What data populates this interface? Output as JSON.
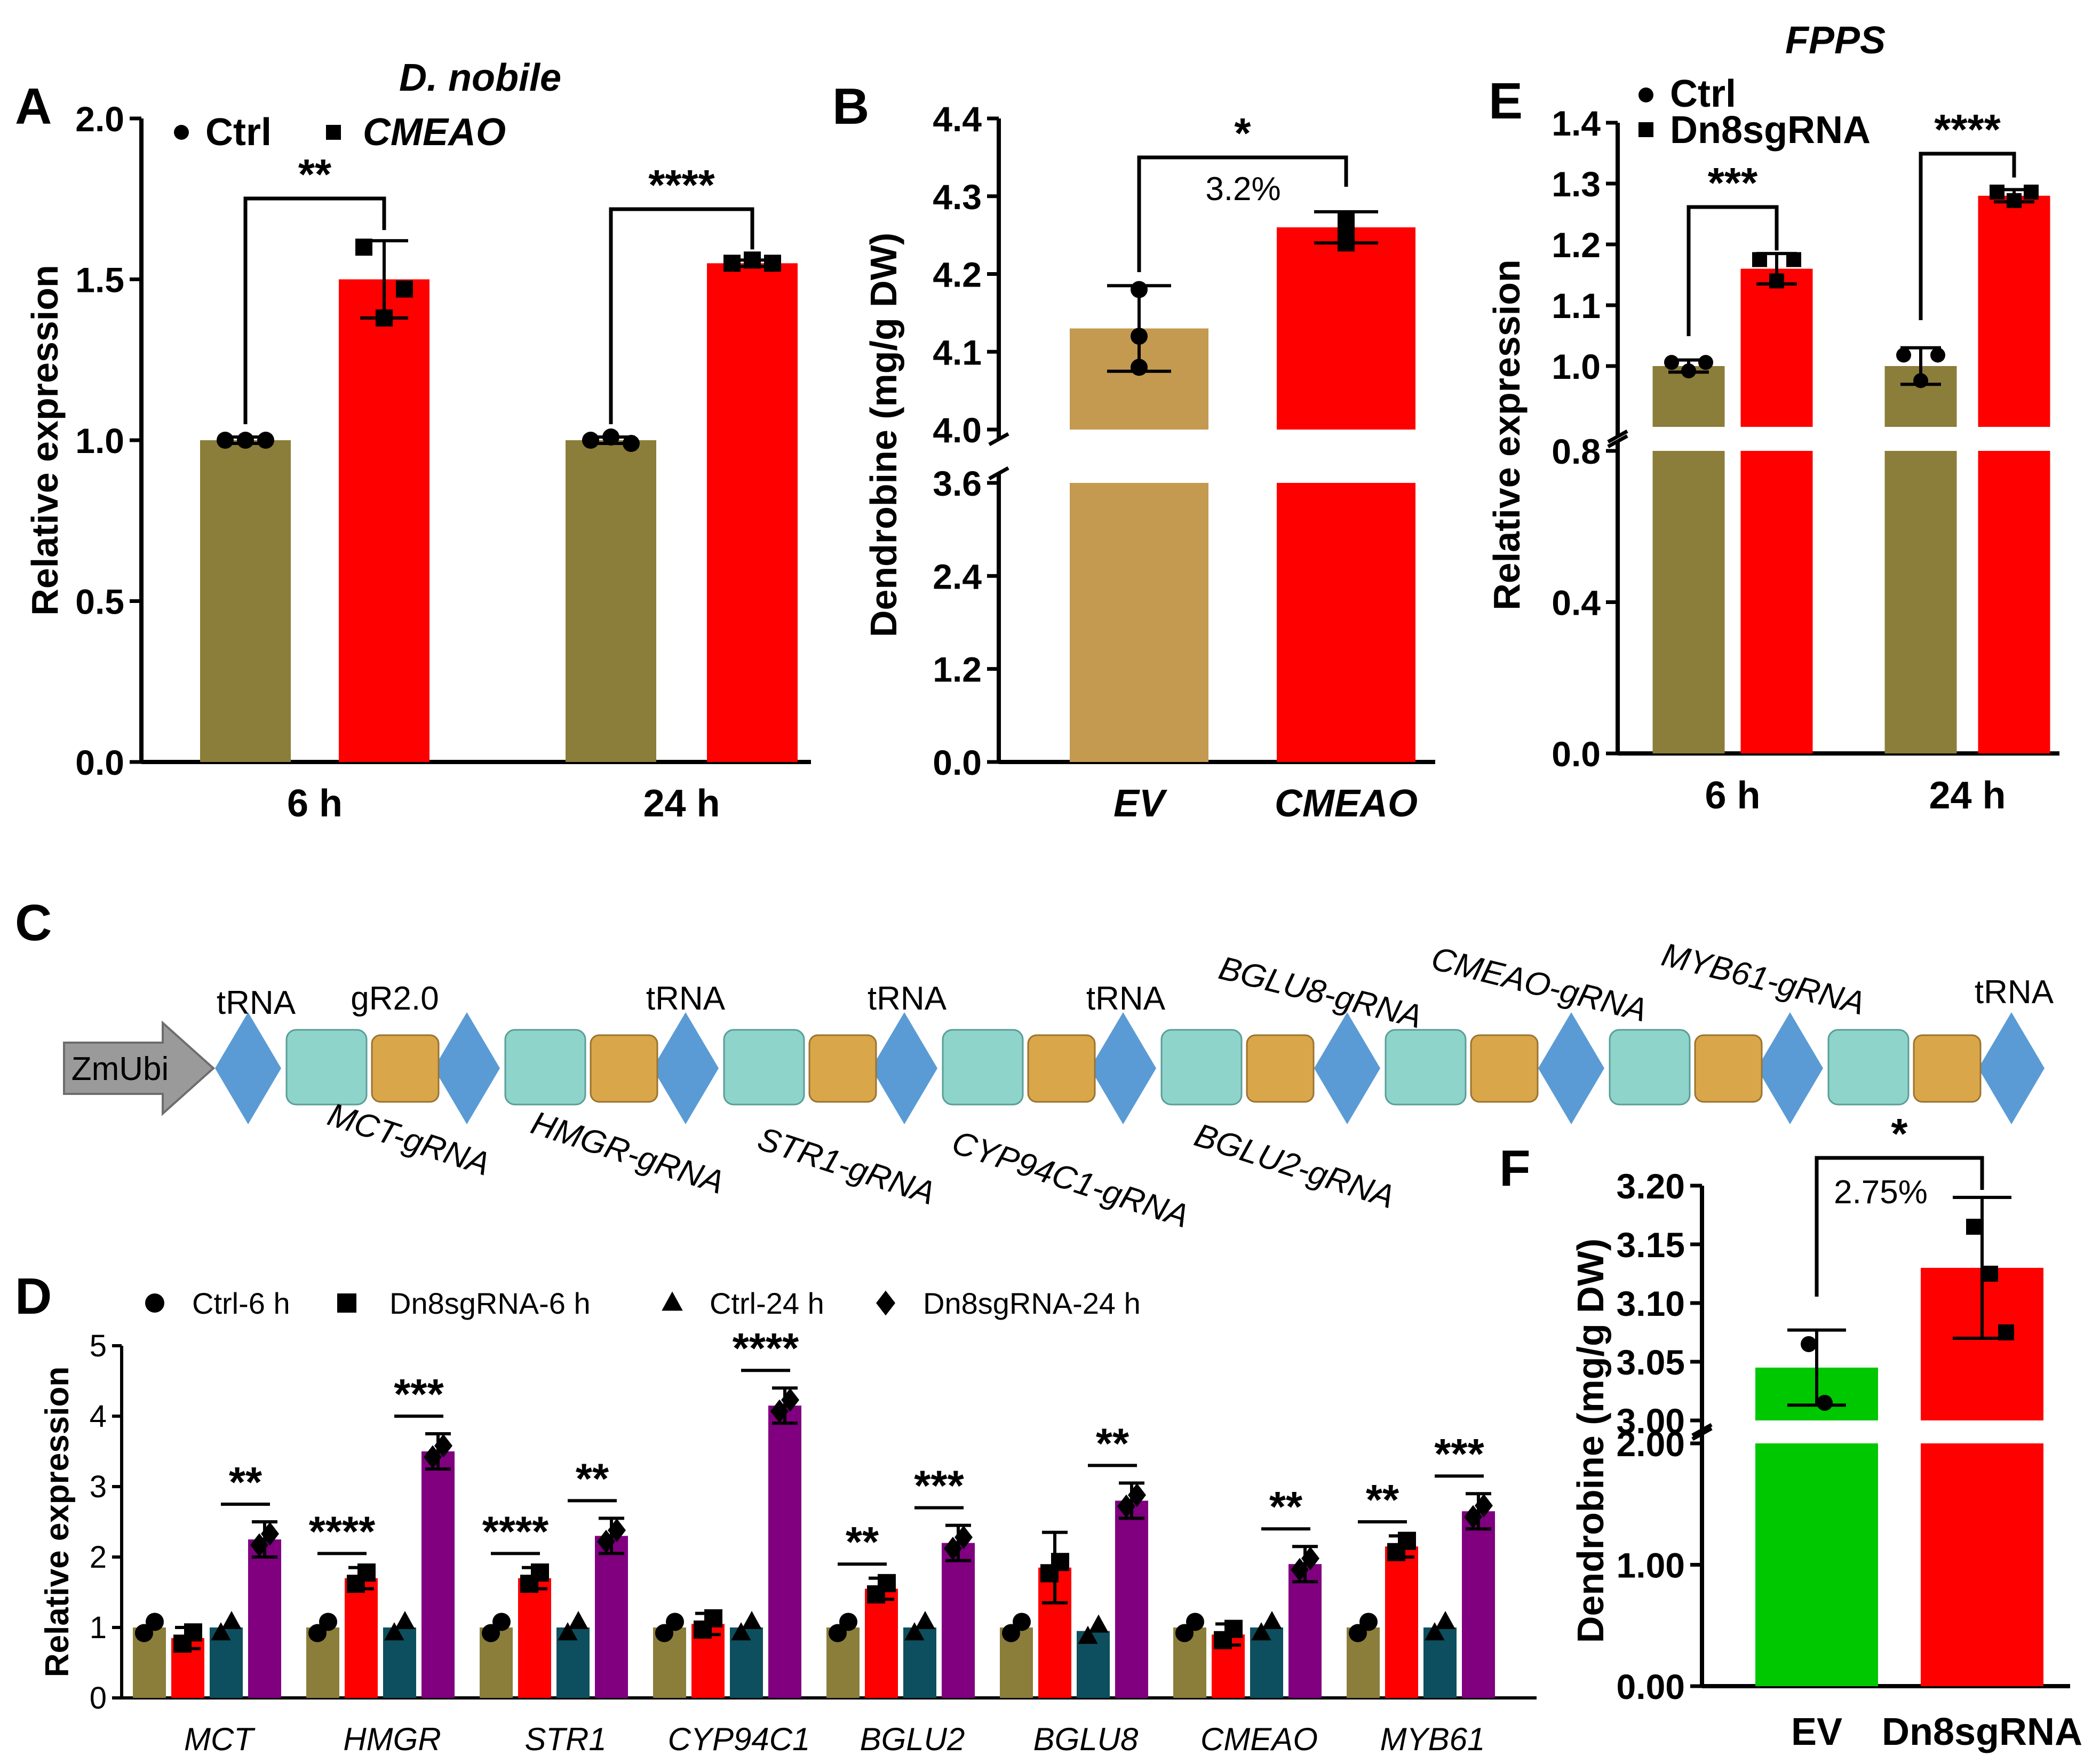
{
  "colors": {
    "ctrl_olive": "#8B7D3A",
    "ev_tan": "#C49A50",
    "treat_red": "#FF0000",
    "dark_teal": "#0D4F5E",
    "purple": "#800080",
    "green": "#00C800",
    "promoter_grey": "#9A9A9A",
    "trna_blue": "#5B9BD5",
    "scaffold_teal": "#8FD4CB",
    "grna_orange": "#D9A64A"
  },
  "panels": {
    "A": "A",
    "B": "B",
    "C": "C",
    "D": "D",
    "E": "E",
    "F": "F"
  },
  "chart_data": [
    {
      "panel": "A",
      "type": "bar",
      "title": "D. nobile",
      "ylabel": "Relative expression",
      "ylim": [
        0,
        2.0
      ],
      "yticks": [
        "0.0",
        "0.5",
        "1.0",
        "1.5",
        "2.0"
      ],
      "categories": [
        "6 h",
        "24 h"
      ],
      "series": [
        {
          "name": "Ctrl",
          "marker": "circle",
          "values": [
            1.0,
            1.0
          ],
          "errors": [
            0.01,
            0.01
          ],
          "points": [
            [
              1.0,
              1.0,
              1.0
            ],
            [
              1.0,
              1.01,
              0.99
            ]
          ]
        },
        {
          "name": "CMEAO",
          "marker": "square",
          "values": [
            1.5,
            1.55
          ],
          "errors": [
            0.12,
            0.01
          ],
          "points": [
            [
              1.6,
              1.38,
              1.47
            ],
            [
              1.55,
              1.56,
              1.55
            ]
          ]
        }
      ],
      "significance": [
        "**",
        "****"
      ]
    },
    {
      "panel": "B",
      "type": "bar",
      "ylabel": "Dendrobine (mg/g DW)",
      "yticks_low": [
        "0.0",
        "1.2",
        "2.4",
        "3.6"
      ],
      "yticks_high": [
        "4.0",
        "4.1",
        "4.2",
        "4.3",
        "4.4"
      ],
      "categories": [
        "EV",
        "CMEAO"
      ],
      "values": [
        4.13,
        4.26
      ],
      "errors": [
        0.055,
        0.02
      ],
      "points": [
        [
          4.18,
          4.12,
          4.08
        ],
        [
          4.27,
          4.25,
          4.24
        ]
      ],
      "significance": "*",
      "annotation": "3.2%"
    },
    {
      "panel": "D",
      "type": "bar",
      "ylabel": "Relative expression",
      "ylim": [
        0,
        5
      ],
      "yticks": [
        "0",
        "1",
        "2",
        "3",
        "4",
        "5"
      ],
      "categories": [
        "MCT",
        "HMGR",
        "STR1",
        "CYP94C1",
        "BGLU2",
        "BGLU8",
        "CMEAO",
        "MYB61"
      ],
      "series": [
        {
          "name": "Ctrl-6 h",
          "marker": "circle",
          "values": [
            1.0,
            1.0,
            1.0,
            1.0,
            1.0,
            1.0,
            1.0,
            1.0
          ]
        },
        {
          "name": "Dn8sgRNA-6 h",
          "marker": "square",
          "values": [
            0.85,
            1.7,
            1.7,
            1.05,
            1.55,
            1.85,
            0.9,
            2.15
          ]
        },
        {
          "name": "Ctrl-24 h",
          "marker": "triangle",
          "values": [
            1.0,
            1.0,
            1.0,
            1.0,
            1.0,
            0.95,
            1.0,
            1.0
          ]
        },
        {
          "name": "Dn8sgRNA-24 h",
          "marker": "diamond",
          "values": [
            2.25,
            3.5,
            2.3,
            4.15,
            2.2,
            2.8,
            1.9,
            2.65
          ]
        }
      ],
      "significance": [
        {
          "pair": "6h",
          "labels": [
            "",
            "****",
            "****",
            "",
            "**",
            "",
            "",
            "**"
          ]
        },
        {
          "pair": "24h",
          "labels": [
            "**",
            "***",
            "**",
            "****",
            "***",
            "**",
            "**",
            "***"
          ]
        }
      ]
    },
    {
      "panel": "E",
      "type": "bar",
      "title": "FPPS",
      "ylabel": "Relative expression",
      "yticks_low": [
        "0.0",
        "0.4",
        "0.8"
      ],
      "yticks_high": [
        "1.0",
        "1.1",
        "1.2",
        "1.3",
        "1.4"
      ],
      "categories": [
        "6 h",
        "24 h"
      ],
      "series": [
        {
          "name": "Ctrl",
          "marker": "circle",
          "values": [
            1.0,
            1.0
          ],
          "errors": [
            0.01,
            0.03
          ]
        },
        {
          "name": "Dn8sgRNA",
          "marker": "square",
          "values": [
            1.16,
            1.28
          ],
          "errors": [
            0.025,
            0.01
          ]
        }
      ],
      "significance": [
        "***",
        "****"
      ]
    },
    {
      "panel": "F",
      "type": "bar",
      "ylabel": "Dendrobine (mg/g DW)",
      "yticks_low": [
        "0.00",
        "1.00",
        "2.00"
      ],
      "yticks_high": [
        "3.00",
        "3.05",
        "3.10",
        "3.15",
        "3.20"
      ],
      "categories": [
        "EV",
        "Dn8sgRNA"
      ],
      "values": [
        3.045,
        3.13
      ],
      "errors": [
        0.032,
        0.06
      ],
      "significance": "*",
      "annotation": "2.75%"
    }
  ],
  "construct": {
    "promoter": "ZmUbi",
    "labels_above": [
      "tRNA",
      "gR2.0",
      "tRNA",
      "tRNA",
      "tRNA",
      "BGLU8-gRNA",
      "CMEAO-gRNA",
      "MYB61-gRNA",
      "tRNA"
    ],
    "labels_below": [
      "MCT-gRNA",
      "HMGR-gRNA",
      "STR1-gRNA",
      "CYP94C1-gRNA",
      "BGLU2-gRNA"
    ]
  }
}
